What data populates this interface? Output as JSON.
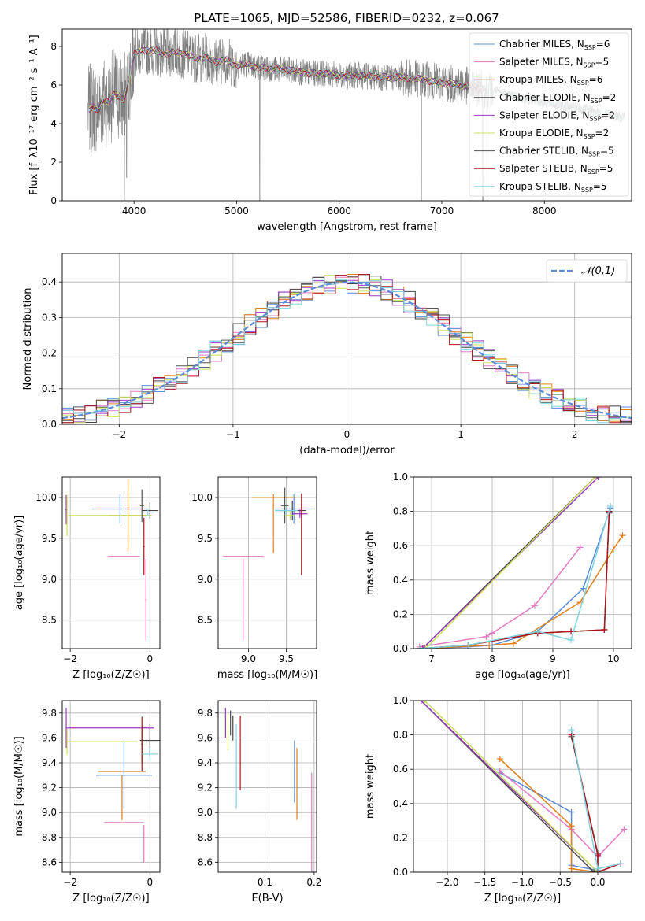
{
  "figure": {
    "title": "PLATE=1065, MJD=52586, FIBERID=0232, z=0.067"
  },
  "colors": {
    "Chabrier MILES": "#5b8bd9",
    "Salpeter MILES": "#e37ac3",
    "Kroupa MILES": "#e0801a",
    "Chabrier ELODIE": "#444444",
    "Salpeter ELODIE": "#9a3ac2",
    "Kroupa ELODIE": "#c8e05a",
    "Chabrier STELIB": "#555555",
    "Salpeter STELIB": "#b0141c",
    "Kroupa STELIB": "#7fd3e0"
  },
  "chart_data": [
    {
      "id": "spectrum",
      "type": "line",
      "title": "PLATE=1065, MJD=52586, FIBERID=0232, z=0.067",
      "xlabel": "wavelength [Angstrom, rest frame]",
      "ylabel": "Flux [f_λ10⁻¹⁷ erg cm⁻² s⁻¹ A⁻¹]",
      "xlim": [
        3300,
        8850
      ],
      "ylim": [
        0,
        8.9
      ],
      "xticks": [
        4000,
        5000,
        6000,
        7000,
        8000
      ],
      "yticks": [
        0,
        2,
        4,
        6,
        8
      ],
      "grid": false,
      "legend_position": "top-right",
      "legend": [
        {
          "label": "Chabrier MILES, N_SSP=6",
          "main": "Chabrier MILES, N",
          "sub": "SSP",
          "tail": "=6",
          "color": "#5b8bd9"
        },
        {
          "label": "Salpeter MILES, N_SSP=5",
          "main": "Salpeter MILES, N",
          "sub": "SSP",
          "tail": "=5",
          "color": "#e37ac3"
        },
        {
          "label": "Kroupa MILES, N_SSP=6",
          "main": "Kroupa MILES, N",
          "sub": "SSP",
          "tail": "=6",
          "color": "#e0801a"
        },
        {
          "label": "Chabrier ELODIE, N_SSP=2",
          "main": "Chabrier ELODIE, N",
          "sub": "SSP",
          "tail": "=2",
          "color": "#444444"
        },
        {
          "label": "Salpeter ELODIE, N_SSP=2",
          "main": "Salpeter ELODIE, N",
          "sub": "SSP",
          "tail": "=2",
          "color": "#9a3ac2"
        },
        {
          "label": "Kroupa ELODIE, N_SSP=2",
          "main": "Kroupa ELODIE, N",
          "sub": "SSP",
          "tail": "=2",
          "color": "#c8e05a"
        },
        {
          "label": "Chabrier STELIB, N_SSP=5",
          "main": "Chabrier STELIB, N",
          "sub": "SSP",
          "tail": "=5",
          "color": "#555555"
        },
        {
          "label": "Salpeter STELIB, N_SSP=5",
          "main": "Salpeter STELIB, N",
          "sub": "SSP",
          "tail": "=5",
          "color": "#b0141c"
        },
        {
          "label": "Kroupa STELIB, N_SSP=5",
          "main": "Kroupa STELIB, N",
          "sub": "SSP",
          "tail": "=5",
          "color": "#7fd3e0"
        }
      ],
      "data_series": {
        "name": "data",
        "color": "#808080",
        "x_range": [
          3550,
          8780
        ]
      },
      "continuum": [
        [
          3550,
          4.6
        ],
        [
          3600,
          4.9
        ],
        [
          3650,
          4.7
        ],
        [
          3700,
          5.2
        ],
        [
          3750,
          5.1
        ],
        [
          3800,
          5.6
        ],
        [
          3850,
          5.4
        ],
        [
          3900,
          5.2
        ],
        [
          3950,
          6.3
        ],
        [
          4000,
          7.6
        ],
        [
          4100,
          7.8
        ],
        [
          4200,
          7.8
        ],
        [
          4300,
          7.6
        ],
        [
          4400,
          7.7
        ],
        [
          4500,
          7.6
        ],
        [
          4600,
          7.4
        ],
        [
          4700,
          7.4
        ],
        [
          4800,
          7.2
        ],
        [
          4900,
          7.3
        ],
        [
          5000,
          7.0
        ],
        [
          5100,
          7.1
        ],
        [
          5200,
          6.9
        ],
        [
          5300,
          6.9
        ],
        [
          5400,
          6.8
        ],
        [
          5500,
          6.8
        ],
        [
          5600,
          6.7
        ],
        [
          5700,
          6.6
        ],
        [
          5800,
          6.6
        ],
        [
          5900,
          6.6
        ],
        [
          6000,
          6.5
        ],
        [
          6200,
          6.5
        ],
        [
          6400,
          6.4
        ],
        [
          6600,
          6.4
        ],
        [
          6800,
          6.3
        ],
        [
          7000,
          6.1
        ],
        [
          7200,
          6.0
        ],
        [
          7400,
          5.8
        ],
        [
          7600,
          5.6
        ],
        [
          7800,
          5.3
        ],
        [
          8000,
          5.1
        ],
        [
          8200,
          4.9
        ],
        [
          8400,
          4.7
        ],
        [
          8600,
          4.5
        ],
        [
          8780,
          4.3
        ]
      ],
      "model_cut_wavelength": 7420,
      "absorption_spikes": [
        [
          3580,
          2.5
        ],
        [
          3905,
          0
        ],
        [
          3928,
          1.2
        ],
        [
          5225,
          0
        ],
        [
          6800,
          0
        ],
        [
          7400,
          0
        ],
        [
          7440,
          0
        ]
      ]
    },
    {
      "id": "residuals",
      "type": "histogram",
      "xlabel": "(data-model)/error",
      "ylabel": "Normed distribution",
      "xlim": [
        -2.5,
        2.5
      ],
      "ylim": [
        0,
        0.48
      ],
      "xticks": [
        -2,
        -1,
        0,
        1,
        2
      ],
      "yticks": [
        0.0,
        0.1,
        0.2,
        0.3,
        0.4
      ],
      "grid": true,
      "legend_position": "top-right",
      "reference": {
        "name": "𝒩(0,1)",
        "mean": 0,
        "sigma": 1,
        "color": "#5b8bd9",
        "dashed": true
      },
      "bin_width": 0.1,
      "bin_start": -2.5
    },
    {
      "id": "age-vs-Z",
      "type": "scatter",
      "xlabel": "Z [log₁₀(Z/Z☉)]",
      "ylabel": "age  [log₁₀(age/yr)]",
      "xlim": [
        -2.2,
        0.25
      ],
      "ylim": [
        8.15,
        10.25
      ],
      "xticks": [
        -2,
        0
      ],
      "yticks": [
        8.5,
        9.0,
        9.5,
        10.0
      ],
      "grid": true,
      "points": [
        {
          "model": "Chabrier MILES",
          "x": -0.75,
          "y": 9.86,
          "xerr": 0.7,
          "yerr": 0.18
        },
        {
          "model": "Salpeter MILES",
          "x": -0.1,
          "y": 8.75,
          "xerr": 0.02,
          "yerr": 0.5
        },
        {
          "model": "Salpeter MILES",
          "x": -0.65,
          "y": 9.28,
          "xerr": 0.4,
          "yerr": 0.0
        },
        {
          "model": "Kroupa MILES",
          "x": -0.55,
          "y": 9.78,
          "xerr": 0.5,
          "yerr": 0.45
        },
        {
          "model": "Chabrier ELODIE",
          "x": 0.0,
          "y": 9.84,
          "xerr": 0.2,
          "yerr": 0.1
        },
        {
          "model": "Salpeter ELODIE",
          "x": -2.1,
          "y": 9.85,
          "xerr": 0.02,
          "yerr": 0.18
        },
        {
          "model": "Kroupa ELODIE",
          "x": -2.08,
          "y": 9.78,
          "xerr": 0.01,
          "yerr": 0.25
        },
        {
          "model": "Kroupa ELODIE",
          "x": -1.0,
          "y": 9.78,
          "xerr": 1.05,
          "yerr": 0.0
        },
        {
          "model": "Chabrier STELIB",
          "x": -0.2,
          "y": 9.9,
          "xerr": 0.05,
          "yerr": 0.2
        },
        {
          "model": "Salpeter STELIB",
          "x": -0.15,
          "y": 9.4,
          "xerr": 0.02,
          "yerr": 0.35
        },
        {
          "model": "Kroupa STELIB",
          "x": -0.05,
          "y": 9.82,
          "xerr": 0.15,
          "yerr": 0.05
        }
      ]
    },
    {
      "id": "age-vs-mass",
      "type": "scatter",
      "xlabel": "mass [log₁₀(M/M☉)]",
      "ylabel": "",
      "xlim": [
        8.6,
        9.9
      ],
      "ylim": [
        8.15,
        10.25
      ],
      "xticks": [
        9.0,
        9.5
      ],
      "yticks": [
        8.5,
        9.0,
        9.5,
        10.0
      ],
      "grid": true,
      "points": [
        {
          "model": "Chabrier MILES",
          "x": 9.6,
          "y": 9.86,
          "xerr": 0.25,
          "yerr": 0.18
        },
        {
          "model": "Salpeter MILES",
          "x": 8.93,
          "y": 9.28,
          "xerr": 0.27,
          "yerr": 0.0
        },
        {
          "model": "Salpeter MILES",
          "x": 8.93,
          "y": 8.75,
          "xerr": 0.0,
          "yerr": 0.5
        },
        {
          "model": "Kroupa MILES",
          "x": 9.33,
          "y": 9.68,
          "xerr": 0.0,
          "yerr": 0.36
        },
        {
          "model": "Kroupa MILES",
          "x": 9.33,
          "y": 10.0,
          "xerr": 0.28,
          "yerr": 0.0
        },
        {
          "model": "Chabrier ELODIE",
          "x": 9.58,
          "y": 9.84,
          "xerr": 0.18,
          "yerr": 0.12
        },
        {
          "model": "Salpeter ELODIE",
          "x": 9.68,
          "y": 9.8,
          "xerr": 0.1,
          "yerr": 0.05
        },
        {
          "model": "Kroupa ELODIE",
          "x": 9.55,
          "y": 9.78,
          "xerr": 0.05,
          "yerr": 0.05
        },
        {
          "model": "Chabrier STELIB",
          "x": 9.48,
          "y": 9.9,
          "xerr": 0.05,
          "yerr": 0.22
        },
        {
          "model": "Salpeter STELIB",
          "x": 9.7,
          "y": 9.55,
          "xerr": 0.0,
          "yerr": 0.5
        },
        {
          "model": "Kroupa STELIB",
          "x": 9.5,
          "y": 9.84,
          "xerr": 0.15,
          "yerr": 0.05
        }
      ]
    },
    {
      "id": "massweight-vs-age",
      "type": "line",
      "xlabel": "age  [log₁₀(age/yr)]",
      "ylabel": "mass weight",
      "xlim": [
        6.7,
        10.3
      ],
      "ylim": [
        0,
        1.0
      ],
      "xticks": [
        7,
        8,
        9,
        10
      ],
      "yticks": [
        0.0,
        0.2,
        0.4,
        0.6,
        0.8,
        1.0
      ],
      "grid": true,
      "series": [
        {
          "name": "Chabrier MILES",
          "x": [
            6.8,
            7.6,
            8.0,
            8.75,
            9.5,
            9.95
          ],
          "y": [
            0.0,
            0.01,
            0.02,
            0.1,
            0.35,
            0.82
          ]
        },
        {
          "name": "Salpeter MILES",
          "x": [
            6.8,
            7.9,
            8.0,
            8.7,
            9.45
          ],
          "y": [
            0.01,
            0.07,
            0.09,
            0.25,
            0.59
          ]
        },
        {
          "name": "Kroupa MILES",
          "x": [
            6.85,
            7.95,
            8.35,
            9.45,
            10.0,
            10.15
          ],
          "y": [
            0.0,
            0.02,
            0.03,
            0.27,
            0.58,
            0.66
          ]
        },
        {
          "name": "Chabrier ELODIE",
          "x": [
            6.85,
            9.7
          ],
          "y": [
            0.0,
            1.0
          ]
        },
        {
          "name": "Salpeter ELODIE",
          "x": [
            6.85,
            9.75
          ],
          "y": [
            0.0,
            1.0
          ]
        },
        {
          "name": "Kroupa ELODIE",
          "x": [
            6.9,
            9.7
          ],
          "y": [
            0.0,
            1.0
          ]
        },
        {
          "name": "Chabrier STELIB",
          "x": [
            6.8,
            7.6,
            8.75,
            9.3,
            9.85,
            9.93
          ],
          "y": [
            0.0,
            0.02,
            0.09,
            0.1,
            0.11,
            0.79
          ]
        },
        {
          "name": "Salpeter STELIB",
          "x": [
            6.8,
            7.6,
            8.75,
            9.3,
            9.85,
            9.93
          ],
          "y": [
            0.0,
            0.02,
            0.09,
            0.1,
            0.11,
            0.8
          ]
        },
        {
          "name": "Kroupa STELIB",
          "x": [
            6.8,
            7.6,
            8.75,
            9.3,
            9.95
          ],
          "y": [
            0.0,
            0.02,
            0.1,
            0.05,
            0.83
          ]
        }
      ]
    },
    {
      "id": "mass-vs-Z",
      "type": "scatter",
      "xlabel": "Z [log₁₀(Z/Z☉)]",
      "ylabel": "mass [log₁₀(M/M☉)]",
      "xlim": [
        -2.2,
        0.25
      ],
      "ylim": [
        8.52,
        9.9
      ],
      "xticks": [
        -2,
        0
      ],
      "yticks": [
        8.6,
        8.8,
        9.0,
        9.2,
        9.4,
        9.6,
        9.8
      ],
      "grid": true,
      "points": [
        {
          "model": "Chabrier MILES",
          "x": -0.65,
          "y": 9.3,
          "xerr": 0.7,
          "yerr": 0.27
        },
        {
          "model": "Salpeter MILES",
          "x": -0.15,
          "y": 8.75,
          "xerr": 0.0,
          "yerr": 0.15
        },
        {
          "model": "Salpeter MILES",
          "x": -0.65,
          "y": 8.92,
          "xerr": 0.5,
          "yerr": 0.0
        },
        {
          "model": "Kroupa MILES",
          "x": -0.7,
          "y": 9.33,
          "xerr": 0.6,
          "yerr": 0.0
        },
        {
          "model": "Kroupa MILES",
          "x": -0.7,
          "y": 9.12,
          "xerr": 0.0,
          "yerr": 0.18
        },
        {
          "model": "Chabrier ELODIE",
          "x": 0.0,
          "y": 9.58,
          "xerr": 0.25,
          "yerr": 0.13
        },
        {
          "model": "Salpeter ELODIE",
          "x": -2.1,
          "y": 9.68,
          "xerr": 0.0,
          "yerr": 0.16
        },
        {
          "model": "Salpeter ELODIE",
          "x": -1.0,
          "y": 9.68,
          "xerr": 1.1,
          "yerr": 0.0
        },
        {
          "model": "Kroupa ELODIE",
          "x": -2.08,
          "y": 9.57,
          "xerr": 0.0,
          "yerr": 0.1
        },
        {
          "model": "Kroupa ELODIE",
          "x": -1.2,
          "y": 9.57,
          "xerr": 0.9,
          "yerr": 0.0
        },
        {
          "model": "Chabrier STELIB",
          "x": -0.2,
          "y": 9.55,
          "xerr": 0.02,
          "yerr": 0.15
        },
        {
          "model": "Salpeter STELIB",
          "x": -0.2,
          "y": 9.55,
          "xerr": 0.0,
          "yerr": 0.22
        },
        {
          "model": "Kroupa STELIB",
          "x": 0.0,
          "y": 9.47,
          "xerr": 0.2,
          "yerr": 0.05
        }
      ]
    },
    {
      "id": "mass-vs-EBV",
      "type": "scatter",
      "xlabel": "E(B-V)",
      "ylabel": "",
      "xlim": [
        0.005,
        0.205
      ],
      "ylim": [
        8.52,
        9.9
      ],
      "xticks": [
        0.1,
        0.2
      ],
      "yticks": [
        8.6,
        8.8,
        9.0,
        9.2,
        9.4,
        9.6,
        9.8
      ],
      "grid": true,
      "points": [
        {
          "model": "Chabrier MILES",
          "x": 0.16,
          "y": 9.33,
          "xerr": 0.0,
          "yerr": 0.25
        },
        {
          "model": "Salpeter MILES",
          "x": 0.195,
          "y": 8.92,
          "xerr": 0.0,
          "yerr": 0.4
        },
        {
          "model": "Kroupa MILES",
          "x": 0.165,
          "y": 9.23,
          "xerr": 0.0,
          "yerr": 0.29
        },
        {
          "model": "Chabrier ELODIE",
          "x": 0.035,
          "y": 9.68,
          "xerr": 0.0,
          "yerr": 0.1
        },
        {
          "model": "Salpeter ELODIE",
          "x": 0.02,
          "y": 9.72,
          "xerr": 0.0,
          "yerr": 0.12
        },
        {
          "model": "Kroupa ELODIE",
          "x": 0.025,
          "y": 9.65,
          "xerr": 0.0,
          "yerr": 0.15
        },
        {
          "model": "Chabrier STELIB",
          "x": 0.03,
          "y": 9.72,
          "xerr": 0.0,
          "yerr": 0.1
        },
        {
          "model": "Salpeter STELIB",
          "x": 0.05,
          "y": 9.48,
          "xerr": 0.0,
          "yerr": 0.3
        },
        {
          "model": "Kroupa STELIB",
          "x": 0.042,
          "y": 9.37,
          "xerr": 0.0,
          "yerr": 0.34
        }
      ]
    },
    {
      "id": "massweight-vs-Z",
      "type": "line",
      "xlabel": "Z [log₁₀(Z/Z☉)]",
      "ylabel": "mass weight",
      "xlim": [
        -2.45,
        0.45
      ],
      "ylim": [
        0,
        1.0
      ],
      "xticks": [
        -2.0,
        -1.5,
        -1.0,
        -0.5,
        0.0
      ],
      "yticks": [
        0.0,
        0.2,
        0.4,
        0.6,
        0.8,
        1.0
      ],
      "grid": true,
      "series": [
        {
          "name": "Chabrier MILES",
          "x": [
            -1.3,
            -0.35,
            -0.35,
            0.0,
            0.0
          ],
          "y": [
            0.58,
            0.35,
            0.04,
            0.01,
            0.0
          ]
        },
        {
          "name": "Salpeter MILES",
          "x": [
            -1.3,
            -0.35,
            0.0,
            0.35
          ],
          "y": [
            0.59,
            0.25,
            0.09,
            0.25
          ]
        },
        {
          "name": "Kroupa MILES",
          "x": [
            -1.3,
            -0.35,
            -0.35,
            -0.35,
            0.0
          ],
          "y": [
            0.66,
            0.27,
            0.03,
            0.02,
            0.0
          ]
        },
        {
          "name": "Chabrier ELODIE",
          "x": [
            -2.35,
            -0.05
          ],
          "y": [
            1.0,
            0.0
          ]
        },
        {
          "name": "Salpeter ELODIE",
          "x": [
            -2.35,
            0.0
          ],
          "y": [
            1.0,
            0.0
          ]
        },
        {
          "name": "Kroupa ELODIE",
          "x": [
            -2.3,
            0.0
          ],
          "y": [
            1.0,
            0.0
          ]
        },
        {
          "name": "Chabrier STELIB",
          "x": [
            -0.35,
            0.0,
            0.0,
            0.3
          ],
          "y": [
            0.79,
            0.11,
            0.0,
            0.05
          ]
        },
        {
          "name": "Salpeter STELIB",
          "x": [
            -0.35,
            0.0,
            0.0,
            0.3
          ],
          "y": [
            0.8,
            0.1,
            0.0,
            0.05
          ]
        },
        {
          "name": "Kroupa STELIB",
          "x": [
            -0.35,
            0.0,
            0.3
          ],
          "y": [
            0.83,
            0.02,
            0.05
          ]
        }
      ]
    }
  ]
}
